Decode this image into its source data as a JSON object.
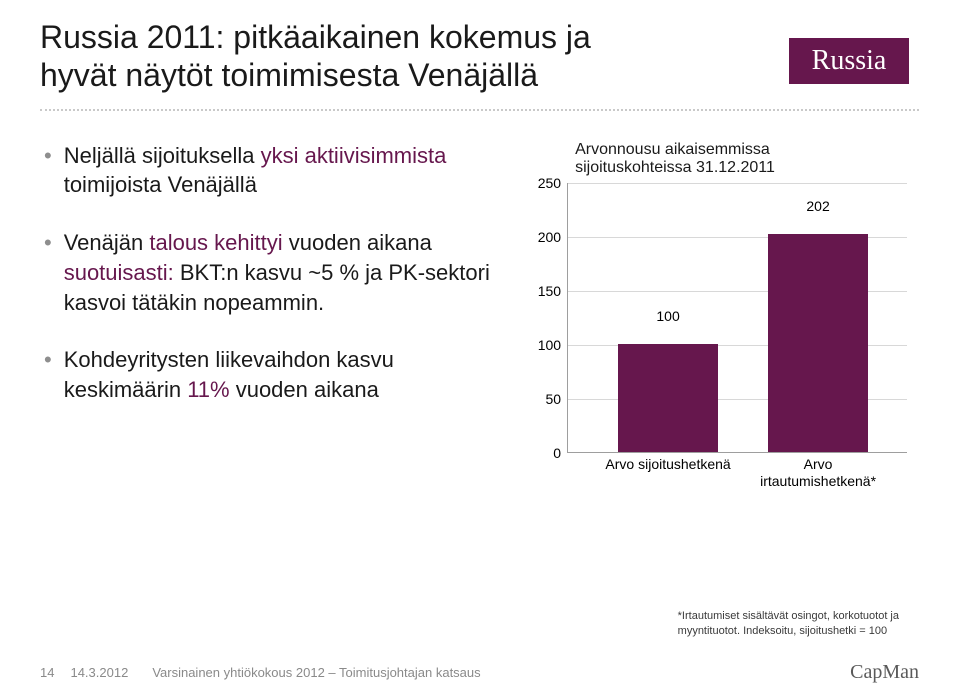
{
  "title_line1": "Russia 2011: pitkäaikainen kokemus ja",
  "title_line2": "hyvät näytöt toimimisesta Venäjällä",
  "logo_text": "Russia",
  "bullets": [
    {
      "pre": "Neljällä sijoituksella ",
      "accent1": "yksi aktiivisimmista",
      "post1": " toimijoista Venäjällä"
    },
    {
      "pre": "Venäjän ",
      "accent1": "talous kehittyi",
      "post1": " vuoden aikana ",
      "accent2": "suotuisasti:",
      "post2": " BKT:n kasvu ~5 % ja PK-sektori kasvoi tätäkin nopeammin."
    },
    {
      "pre": "Kohdeyritysten liikevaihdon kasvu keskimäärin ",
      "accent1": "11%",
      "post1": " vuoden aikana"
    }
  ],
  "chart": {
    "title_line1": "Arvonnousu aikaisemmissa",
    "title_line2": "sijoituskohteissa 31.12.2011",
    "ymax": 250,
    "ystep": 50,
    "yticks": [
      "0",
      "50",
      "100",
      "150",
      "200",
      "250"
    ],
    "bar1": {
      "value": 100,
      "label": "100",
      "xlabel": "Arvo sijoitushetkenä",
      "color": "#66174d"
    },
    "bar2": {
      "value": 202,
      "label": "202",
      "xlabel": "Arvo\nirtautumishetkenä*",
      "color": "#66174d"
    },
    "grid_color": "#d8d8d8",
    "axis_color": "#9e9e9e"
  },
  "footnote_line1": "*Irtautumiset sisältävät osingot, korkotuotot ja",
  "footnote_line2": "myyntituotot. Indeksoitu, sijoitushetki = 100",
  "footer": {
    "page": "14",
    "date": "14.3.2012",
    "desc": "Varsinainen yhtiökokous 2012 – Toimitusjohtajan katsaus",
    "brand": "CapMan"
  }
}
